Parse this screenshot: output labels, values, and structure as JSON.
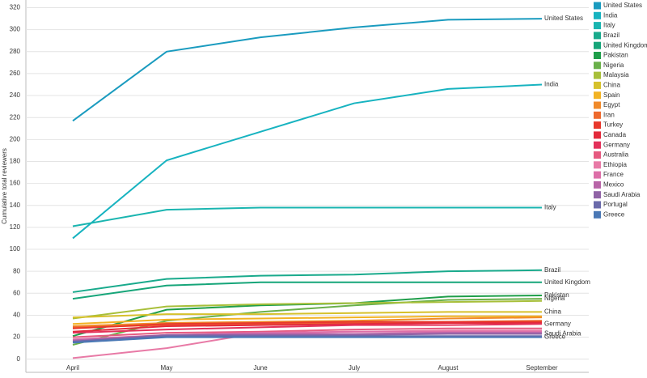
{
  "chart_data": {
    "type": "line",
    "y_label": "Cumulative total reviewers",
    "categories": [
      "April",
      "May",
      "June",
      "July",
      "August",
      "September"
    ],
    "ylim": [
      -12,
      327
    ],
    "yticks": [
      0,
      20,
      40,
      60,
      80,
      100,
      120,
      140,
      160,
      180,
      200,
      220,
      240,
      260,
      280,
      300,
      320
    ],
    "grid": true,
    "legend": "right",
    "series": [
      {
        "name": "United States",
        "color": "#1a9bbf",
        "values": [
          217,
          280,
          293,
          302,
          309,
          310
        ],
        "end_label": true
      },
      {
        "name": "India",
        "color": "#17b3c0",
        "values": [
          110,
          181,
          207,
          233,
          246,
          250
        ],
        "end_label": true
      },
      {
        "name": "Italy",
        "color": "#1ab5b0",
        "values": [
          121,
          136,
          138,
          138,
          138,
          138
        ],
        "end_label": true
      },
      {
        "name": "Brazil",
        "color": "#19aa8c",
        "values": [
          61,
          73,
          76,
          77,
          80,
          81
        ],
        "end_label": true
      },
      {
        "name": "United Kingdom",
        "color": "#16a579",
        "values": [
          55,
          67,
          70,
          70,
          70,
          70
        ],
        "end_label": true
      },
      {
        "name": "Pakistan",
        "color": "#1f9e4a",
        "values": [
          21,
          45,
          49,
          51,
          57,
          58
        ],
        "end_label": true
      },
      {
        "name": "Nigeria",
        "color": "#6ab04a",
        "values": [
          13,
          35,
          43,
          49,
          54,
          55
        ],
        "end_label": true
      },
      {
        "name": "Malaysia",
        "color": "#a8bf3a",
        "values": [
          37,
          48,
          50,
          51,
          52,
          53
        ]
      },
      {
        "name": "China",
        "color": "#d6c12c",
        "values": [
          38,
          41,
          41,
          42,
          43,
          43
        ],
        "end_label": true
      },
      {
        "name": "Spain",
        "color": "#f2b324",
        "values": [
          32,
          36,
          37,
          38,
          39,
          39
        ]
      },
      {
        "name": "Egypt",
        "color": "#f08a2a",
        "values": [
          30,
          33,
          34,
          35,
          37,
          38
        ]
      },
      {
        "name": "Iran",
        "color": "#ee6a2e",
        "values": [
          29,
          31,
          32,
          33,
          34,
          35
        ]
      },
      {
        "name": "Turkey",
        "color": "#e8382c",
        "values": [
          28,
          32,
          33,
          34,
          34,
          34
        ]
      },
      {
        "name": "Canada",
        "color": "#e32a3b",
        "values": [
          25,
          30,
          31,
          32,
          33,
          33
        ]
      },
      {
        "name": "Germany",
        "color": "#e3315a",
        "values": [
          24,
          27,
          29,
          31,
          31,
          32
        ],
        "end_label": true
      },
      {
        "name": "Australia",
        "color": "#e65a80",
        "values": [
          20,
          24,
          25,
          27,
          28,
          28
        ]
      },
      {
        "name": "Ethiopia",
        "color": "#e87aa6",
        "values": [
          1,
          10,
          24,
          25,
          26,
          26
        ]
      },
      {
        "name": "France",
        "color": "#dd6fa8",
        "values": [
          18,
          22,
          24,
          25,
          25,
          25
        ]
      },
      {
        "name": "Mexico",
        "color": "#b865a8",
        "values": [
          17,
          22,
          23,
          23,
          24,
          24
        ]
      },
      {
        "name": "Saudi Arabia",
        "color": "#9064a6",
        "values": [
          16,
          22,
          22,
          22,
          23,
          23
        ],
        "end_label": true
      },
      {
        "name": "Portugal",
        "color": "#6a6aaa",
        "values": [
          16,
          21,
          21,
          21,
          21,
          21
        ]
      },
      {
        "name": "Greece",
        "color": "#4a78b5",
        "values": [
          15,
          20,
          20,
          20,
          20,
          20
        ],
        "end_label": true
      }
    ]
  }
}
